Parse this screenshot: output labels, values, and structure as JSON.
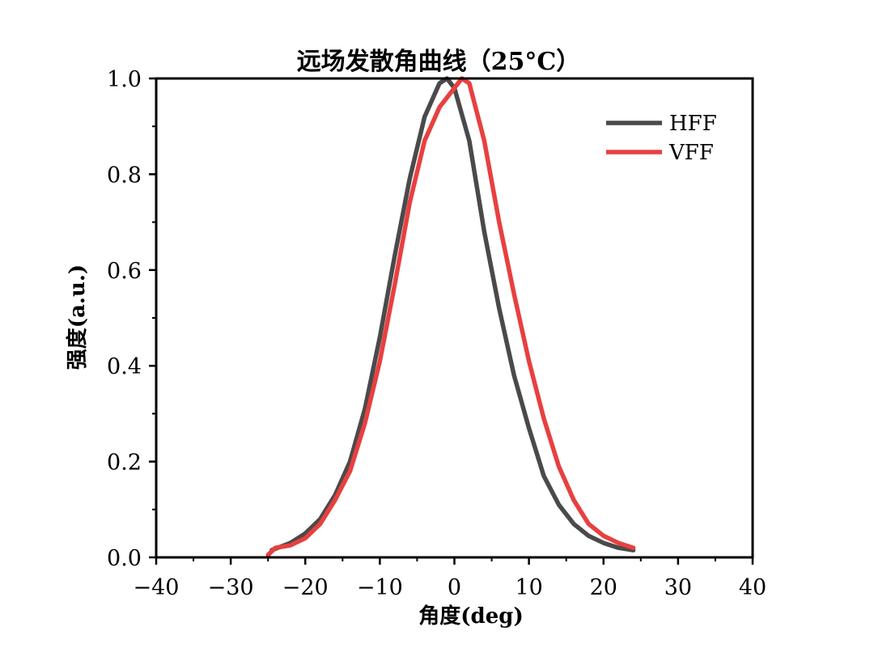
{
  "chart_data": {
    "type": "line",
    "title": "远场发散角曲线（25°C）",
    "xlabel": "角度(deg)",
    "ylabel": "强度(a.u.)",
    "xlim": [
      -40,
      40
    ],
    "ylim": [
      0,
      1.0
    ],
    "x_ticks": [
      "-40",
      "-30",
      "-20",
      "-10",
      "0",
      "10",
      "20",
      "30",
      "40"
    ],
    "y_ticks": [
      "0.0",
      "0.2",
      "0.4",
      "0.6",
      "0.8",
      "1.0"
    ],
    "grid": false,
    "legend_position": "top-right",
    "series": [
      {
        "name": "HFF",
        "color": "#4a4a4a",
        "x": [
          -24.5,
          -22,
          -20,
          -18,
          -16,
          -14,
          -12,
          -10,
          -8,
          -6,
          -4,
          -2,
          -1,
          0,
          2,
          4,
          6,
          8,
          10,
          12,
          14,
          16,
          18,
          20,
          22,
          24
        ],
        "y": [
          0.015,
          0.03,
          0.05,
          0.08,
          0.13,
          0.2,
          0.31,
          0.46,
          0.63,
          0.79,
          0.92,
          0.99,
          1.0,
          0.98,
          0.87,
          0.68,
          0.52,
          0.38,
          0.27,
          0.17,
          0.11,
          0.07,
          0.045,
          0.03,
          0.02,
          0.015
        ]
      },
      {
        "name": "VFF",
        "color": "#e84040",
        "x": [
          -25,
          -24,
          -22,
          -20,
          -18,
          -16,
          -14,
          -12,
          -10,
          -8,
          -6,
          -4,
          -2,
          0,
          1,
          2,
          4,
          6,
          8,
          10,
          12,
          14,
          16,
          18,
          20,
          22,
          24
        ],
        "y": [
          0.005,
          0.02,
          0.025,
          0.04,
          0.07,
          0.12,
          0.18,
          0.28,
          0.41,
          0.57,
          0.74,
          0.87,
          0.94,
          0.98,
          1.0,
          0.99,
          0.87,
          0.7,
          0.55,
          0.41,
          0.29,
          0.19,
          0.12,
          0.07,
          0.045,
          0.03,
          0.02
        ]
      }
    ]
  }
}
